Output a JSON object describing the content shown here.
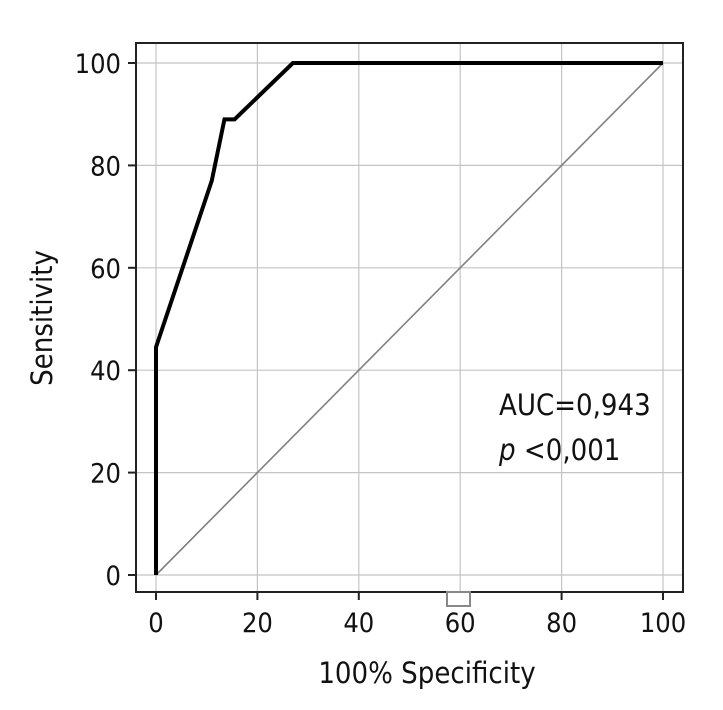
{
  "chart_data": {
    "type": "line",
    "title": "",
    "xlabel": "100% Specificity",
    "ylabel": "Sensitivity",
    "xlim": [
      0,
      100
    ],
    "ylim": [
      0,
      100
    ],
    "xticks": [
      "0",
      "20",
      "40",
      "60",
      "80",
      "100"
    ],
    "yticks": [
      "0",
      "20",
      "40",
      "60",
      "80",
      "100"
    ],
    "grid": true,
    "legend": "none",
    "series": [
      {
        "color": "#000000",
        "x": [
          0,
          0,
          11,
          13.5,
          15.5,
          27,
          100
        ],
        "y": [
          0,
          44.5,
          77,
          89,
          89,
          100,
          100
        ]
      },
      {
        "color": "#808080",
        "x": [
          0,
          100
        ],
        "y": [
          0,
          100
        ]
      }
    ],
    "annotations": {
      "auc": "AUC=0,943",
      "p_symbol": "p",
      "p_value": " <0,001"
    }
  }
}
